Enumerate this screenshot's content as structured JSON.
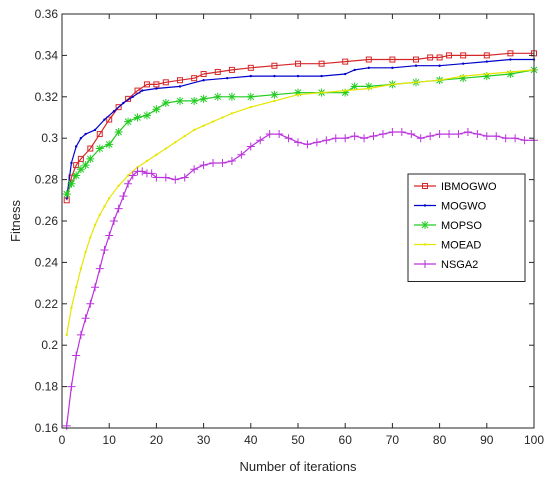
{
  "chart_data": {
    "type": "line",
    "title": "",
    "xlabel": "Number of iterations",
    "ylabel": "Fitness",
    "xlim": [
      0,
      100
    ],
    "ylim": [
      0.16,
      0.36
    ],
    "xticks": [
      0,
      10,
      20,
      30,
      40,
      50,
      60,
      70,
      80,
      90,
      100
    ],
    "yticks": [
      0.16,
      0.18,
      0.2,
      0.22,
      0.24,
      0.26,
      0.28,
      0.3,
      0.32,
      0.34,
      0.36
    ],
    "xtick_labels": [
      "0",
      "10",
      "20",
      "30",
      "40",
      "50",
      "60",
      "70",
      "80",
      "90",
      "100"
    ],
    "ytick_labels": [
      "0.16",
      "0.18",
      "0.2",
      "0.22",
      "0.24",
      "0.26",
      "0.28",
      "0.3",
      "0.32",
      "0.34",
      "0.36"
    ],
    "grid": false,
    "legend_position": "right",
    "series": [
      {
        "name": "IBMOGWO",
        "color": "#d62728",
        "marker": "square",
        "points": [
          [
            1,
            0.27
          ],
          [
            2,
            0.281
          ],
          [
            3,
            0.287
          ],
          [
            4,
            0.29
          ],
          [
            6,
            0.295
          ],
          [
            8,
            0.302
          ],
          [
            10,
            0.309
          ],
          [
            12,
            0.315
          ],
          [
            14,
            0.319
          ],
          [
            16,
            0.323
          ],
          [
            18,
            0.326
          ],
          [
            20,
            0.326
          ],
          [
            22,
            0.327
          ],
          [
            25,
            0.328
          ],
          [
            28,
            0.329
          ],
          [
            30,
            0.331
          ],
          [
            33,
            0.332
          ],
          [
            36,
            0.333
          ],
          [
            40,
            0.334
          ],
          [
            45,
            0.335
          ],
          [
            50,
            0.336
          ],
          [
            55,
            0.336
          ],
          [
            60,
            0.337
          ],
          [
            65,
            0.338
          ],
          [
            70,
            0.338
          ],
          [
            75,
            0.338
          ],
          [
            78,
            0.339
          ],
          [
            80,
            0.339
          ],
          [
            82,
            0.34
          ],
          [
            85,
            0.34
          ],
          [
            90,
            0.34
          ],
          [
            95,
            0.341
          ],
          [
            100,
            0.341
          ]
        ]
      },
      {
        "name": "MOGWO",
        "color": "#0000cc",
        "marker": "point",
        "points": [
          [
            1,
            0.271
          ],
          [
            2,
            0.288
          ],
          [
            3,
            0.296
          ],
          [
            4,
            0.3
          ],
          [
            5,
            0.302
          ],
          [
            7,
            0.304
          ],
          [
            9,
            0.309
          ],
          [
            11,
            0.313
          ],
          [
            13,
            0.317
          ],
          [
            15,
            0.32
          ],
          [
            17,
            0.323
          ],
          [
            20,
            0.324
          ],
          [
            25,
            0.325
          ],
          [
            30,
            0.328
          ],
          [
            35,
            0.329
          ],
          [
            40,
            0.33
          ],
          [
            45,
            0.33
          ],
          [
            50,
            0.33
          ],
          [
            55,
            0.33
          ],
          [
            60,
            0.331
          ],
          [
            62,
            0.333
          ],
          [
            65,
            0.334
          ],
          [
            70,
            0.334
          ],
          [
            75,
            0.335
          ],
          [
            80,
            0.335
          ],
          [
            85,
            0.336
          ],
          [
            90,
            0.337
          ],
          [
            95,
            0.338
          ],
          [
            100,
            0.338
          ]
        ]
      },
      {
        "name": "MOPSO",
        "color": "#22cc22",
        "marker": "star",
        "points": [
          [
            1,
            0.273
          ],
          [
            2,
            0.278
          ],
          [
            3,
            0.282
          ],
          [
            4,
            0.285
          ],
          [
            5,
            0.287
          ],
          [
            6,
            0.29
          ],
          [
            8,
            0.295
          ],
          [
            10,
            0.297
          ],
          [
            12,
            0.303
          ],
          [
            14,
            0.308
          ],
          [
            16,
            0.31
          ],
          [
            18,
            0.311
          ],
          [
            20,
            0.314
          ],
          [
            22,
            0.317
          ],
          [
            25,
            0.318
          ],
          [
            28,
            0.318
          ],
          [
            30,
            0.319
          ],
          [
            33,
            0.32
          ],
          [
            36,
            0.32
          ],
          [
            40,
            0.32
          ],
          [
            45,
            0.321
          ],
          [
            50,
            0.322
          ],
          [
            55,
            0.322
          ],
          [
            60,
            0.322
          ],
          [
            62,
            0.325
          ],
          [
            65,
            0.325
          ],
          [
            70,
            0.326
          ],
          [
            75,
            0.327
          ],
          [
            80,
            0.328
          ],
          [
            85,
            0.329
          ],
          [
            90,
            0.33
          ],
          [
            95,
            0.331
          ],
          [
            100,
            0.333
          ]
        ]
      },
      {
        "name": "MOEAD",
        "color": "#e6e600",
        "marker": "point",
        "points": [
          [
            1,
            0.205
          ],
          [
            2,
            0.218
          ],
          [
            3,
            0.228
          ],
          [
            4,
            0.237
          ],
          [
            5,
            0.245
          ],
          [
            6,
            0.252
          ],
          [
            7,
            0.258
          ],
          [
            8,
            0.263
          ],
          [
            9,
            0.267
          ],
          [
            10,
            0.271
          ],
          [
            12,
            0.277
          ],
          [
            14,
            0.282
          ],
          [
            16,
            0.286
          ],
          [
            18,
            0.289
          ],
          [
            20,
            0.292
          ],
          [
            22,
            0.295
          ],
          [
            24,
            0.298
          ],
          [
            26,
            0.301
          ],
          [
            28,
            0.304
          ],
          [
            30,
            0.306
          ],
          [
            32,
            0.308
          ],
          [
            34,
            0.31
          ],
          [
            36,
            0.312
          ],
          [
            40,
            0.315
          ],
          [
            45,
            0.318
          ],
          [
            50,
            0.321
          ],
          [
            55,
            0.322
          ],
          [
            60,
            0.323
          ],
          [
            65,
            0.324
          ],
          [
            70,
            0.326
          ],
          [
            75,
            0.327
          ],
          [
            80,
            0.328
          ],
          [
            85,
            0.33
          ],
          [
            90,
            0.331
          ],
          [
            95,
            0.332
          ],
          [
            100,
            0.333
          ]
        ]
      },
      {
        "name": "NSGA2",
        "color": "#bb33dd",
        "marker": "plus",
        "points": [
          [
            1,
            0.161
          ],
          [
            2,
            0.18
          ],
          [
            3,
            0.195
          ],
          [
            4,
            0.205
          ],
          [
            5,
            0.213
          ],
          [
            6,
            0.22
          ],
          [
            7,
            0.228
          ],
          [
            8,
            0.237
          ],
          [
            9,
            0.246
          ],
          [
            10,
            0.253
          ],
          [
            11,
            0.26
          ],
          [
            12,
            0.266
          ],
          [
            13,
            0.272
          ],
          [
            14,
            0.278
          ],
          [
            15,
            0.282
          ],
          [
            16,
            0.284
          ],
          [
            17,
            0.284
          ],
          [
            18,
            0.283
          ],
          [
            19,
            0.283
          ],
          [
            20,
            0.281
          ],
          [
            22,
            0.281
          ],
          [
            24,
            0.28
          ],
          [
            26,
            0.281
          ],
          [
            28,
            0.285
          ],
          [
            30,
            0.287
          ],
          [
            32,
            0.288
          ],
          [
            34,
            0.288
          ],
          [
            36,
            0.289
          ],
          [
            38,
            0.292
          ],
          [
            40,
            0.296
          ],
          [
            42,
            0.299
          ],
          [
            44,
            0.302
          ],
          [
            46,
            0.302
          ],
          [
            48,
            0.3
          ],
          [
            50,
            0.298
          ],
          [
            52,
            0.297
          ],
          [
            54,
            0.298
          ],
          [
            56,
            0.299
          ],
          [
            58,
            0.3
          ],
          [
            60,
            0.3
          ],
          [
            62,
            0.301
          ],
          [
            64,
            0.3
          ],
          [
            66,
            0.301
          ],
          [
            68,
            0.302
          ],
          [
            70,
            0.303
          ],
          [
            72,
            0.303
          ],
          [
            74,
            0.302
          ],
          [
            76,
            0.3
          ],
          [
            78,
            0.301
          ],
          [
            80,
            0.302
          ],
          [
            82,
            0.302
          ],
          [
            84,
            0.302
          ],
          [
            86,
            0.303
          ],
          [
            88,
            0.302
          ],
          [
            90,
            0.301
          ],
          [
            92,
            0.301
          ],
          [
            94,
            0.3
          ],
          [
            96,
            0.3
          ],
          [
            98,
            0.299
          ],
          [
            100,
            0.299
          ]
        ]
      }
    ]
  }
}
